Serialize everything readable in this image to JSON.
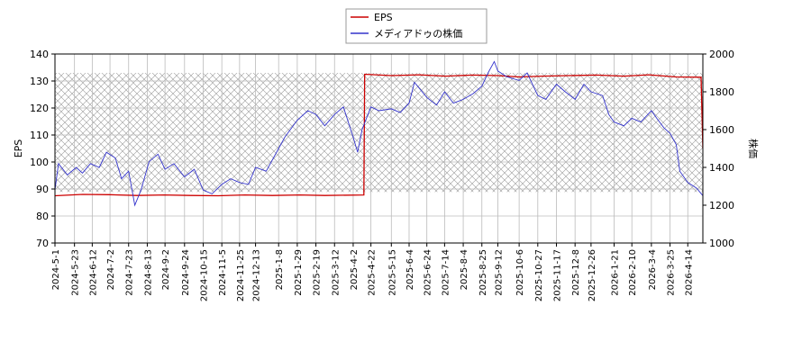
{
  "chart_data": {
    "type": "line",
    "title": "",
    "xlabel": "",
    "ylabel": "EPS",
    "y2label": "株価",
    "ylim": [
      70,
      140
    ],
    "y2lim": [
      1000,
      2000
    ],
    "yticks": [
      70,
      80,
      90,
      100,
      110,
      120,
      130,
      140
    ],
    "y2ticks": [
      1000,
      1200,
      1400,
      1600,
      1800,
      2000
    ],
    "xlim": [
      "2024-05-01",
      "2026-05-01"
    ],
    "xticks": [
      "2024-5-1",
      "2024-5-23",
      "2024-6-12",
      "2024-7-2",
      "2024-7-23",
      "2024-8-13",
      "2024-9-2",
      "2024-9-24",
      "2024-10-15",
      "2024-11-5",
      "2024-11-25",
      "2024-12-13",
      "2025-1-8",
      "2025-1-29",
      "2025-2-19",
      "2025-3-12",
      "2025-4-2",
      "2025-4-22",
      "2025-5-15",
      "2025-6-4",
      "2025-6-24",
      "2025-7-14",
      "2025-8-4",
      "2025-8-25",
      "2025-9-12",
      "2025-10-6",
      "2025-10-27",
      "2025-11-17",
      "2025-12-8",
      "2025-12-26",
      "2026-1-21",
      "2026-2-10",
      "2026-3-4",
      "2026-3-25",
      "2026-4-14"
    ],
    "grid": true,
    "legend_position": "top-center",
    "series": [
      {
        "name": "EPS",
        "axis": "left",
        "color": "#cc0000",
        "points": [
          [
            "2024-05-01",
            87.5
          ],
          [
            "2024-06-01",
            88.0
          ],
          [
            "2024-07-01",
            87.9
          ],
          [
            "2024-08-01",
            87.6
          ],
          [
            "2024-09-01",
            87.8
          ],
          [
            "2024-10-01",
            87.6
          ],
          [
            "2024-11-01",
            87.5
          ],
          [
            "2024-12-01",
            87.8
          ],
          [
            "2025-01-01",
            87.6
          ],
          [
            "2025-02-01",
            87.8
          ],
          [
            "2025-03-01",
            87.6
          ],
          [
            "2025-04-14",
            87.8
          ],
          [
            "2025-04-15",
            132.5
          ],
          [
            "2025-05-15",
            132.0
          ],
          [
            "2025-06-15",
            132.3
          ],
          [
            "2025-07-15",
            131.8
          ],
          [
            "2025-08-15",
            132.2
          ],
          [
            "2025-09-12",
            132.0
          ],
          [
            "2025-10-06",
            131.5
          ],
          [
            "2025-11-01",
            131.8
          ],
          [
            "2025-12-01",
            132.0
          ],
          [
            "2026-01-01",
            132.2
          ],
          [
            "2026-02-01",
            131.8
          ],
          [
            "2026-03-01",
            132.3
          ],
          [
            "2026-04-01",
            131.5
          ],
          [
            "2026-04-29",
            131.4
          ],
          [
            "2026-05-01",
            105.0
          ]
        ]
      },
      {
        "name": "メディアドゥの株価",
        "axis": "right",
        "color": "#3333cc",
        "points": [
          [
            "2024-05-01",
            1280
          ],
          [
            "2024-05-05",
            1420
          ],
          [
            "2024-05-15",
            1360
          ],
          [
            "2024-05-25",
            1400
          ],
          [
            "2024-06-01",
            1370
          ],
          [
            "2024-06-10",
            1420
          ],
          [
            "2024-06-20",
            1400
          ],
          [
            "2024-06-28",
            1480
          ],
          [
            "2024-07-08",
            1450
          ],
          [
            "2024-07-15",
            1340
          ],
          [
            "2024-07-23",
            1380
          ],
          [
            "2024-07-30",
            1200
          ],
          [
            "2024-08-06",
            1280
          ],
          [
            "2024-08-15",
            1430
          ],
          [
            "2024-08-25",
            1470
          ],
          [
            "2024-09-02",
            1390
          ],
          [
            "2024-09-12",
            1420
          ],
          [
            "2024-09-24",
            1350
          ],
          [
            "2024-10-05",
            1390
          ],
          [
            "2024-10-15",
            1280
          ],
          [
            "2024-10-25",
            1260
          ],
          [
            "2024-11-05",
            1310
          ],
          [
            "2024-11-15",
            1340
          ],
          [
            "2024-11-25",
            1320
          ],
          [
            "2024-12-05",
            1310
          ],
          [
            "2024-12-13",
            1400
          ],
          [
            "2024-12-25",
            1380
          ],
          [
            "2025-01-08",
            1500
          ],
          [
            "2025-01-15",
            1560
          ],
          [
            "2025-01-29",
            1650
          ],
          [
            "2025-02-10",
            1700
          ],
          [
            "2025-02-19",
            1680
          ],
          [
            "2025-03-01",
            1620
          ],
          [
            "2025-03-12",
            1680
          ],
          [
            "2025-03-22",
            1720
          ],
          [
            "2025-04-02",
            1560
          ],
          [
            "2025-04-07",
            1480
          ],
          [
            "2025-04-12",
            1600
          ],
          [
            "2025-04-22",
            1720
          ],
          [
            "2025-05-01",
            1700
          ],
          [
            "2025-05-15",
            1710
          ],
          [
            "2025-05-25",
            1690
          ],
          [
            "2025-06-04",
            1740
          ],
          [
            "2025-06-10",
            1850
          ],
          [
            "2025-06-24",
            1770
          ],
          [
            "2025-07-05",
            1730
          ],
          [
            "2025-07-14",
            1800
          ],
          [
            "2025-07-24",
            1740
          ],
          [
            "2025-08-04",
            1760
          ],
          [
            "2025-08-15",
            1790
          ],
          [
            "2025-08-25",
            1830
          ],
          [
            "2025-09-01",
            1900
          ],
          [
            "2025-09-08",
            1960
          ],
          [
            "2025-09-12",
            1910
          ],
          [
            "2025-09-22",
            1880
          ],
          [
            "2025-10-06",
            1860
          ],
          [
            "2025-10-15",
            1900
          ],
          [
            "2025-10-27",
            1780
          ],
          [
            "2025-11-05",
            1760
          ],
          [
            "2025-11-17",
            1840
          ],
          [
            "2025-11-27",
            1800
          ],
          [
            "2025-12-08",
            1760
          ],
          [
            "2025-12-18",
            1840
          ],
          [
            "2025-12-26",
            1800
          ],
          [
            "2026-01-08",
            1780
          ],
          [
            "2026-01-15",
            1680
          ],
          [
            "2026-01-21",
            1640
          ],
          [
            "2026-02-01",
            1620
          ],
          [
            "2026-02-10",
            1660
          ],
          [
            "2026-02-20",
            1640
          ],
          [
            "2026-03-04",
            1700
          ],
          [
            "2026-03-10",
            1660
          ],
          [
            "2026-03-18",
            1610
          ],
          [
            "2026-03-25",
            1580
          ],
          [
            "2026-04-01",
            1520
          ],
          [
            "2026-04-05",
            1380
          ],
          [
            "2026-04-14",
            1320
          ],
          [
            "2026-04-24",
            1290
          ],
          [
            "2026-05-01",
            1250
          ]
        ]
      }
    ],
    "band": {
      "axis": "right",
      "range": [
        1270,
        1900
      ],
      "pattern": "crosshatch"
    }
  }
}
